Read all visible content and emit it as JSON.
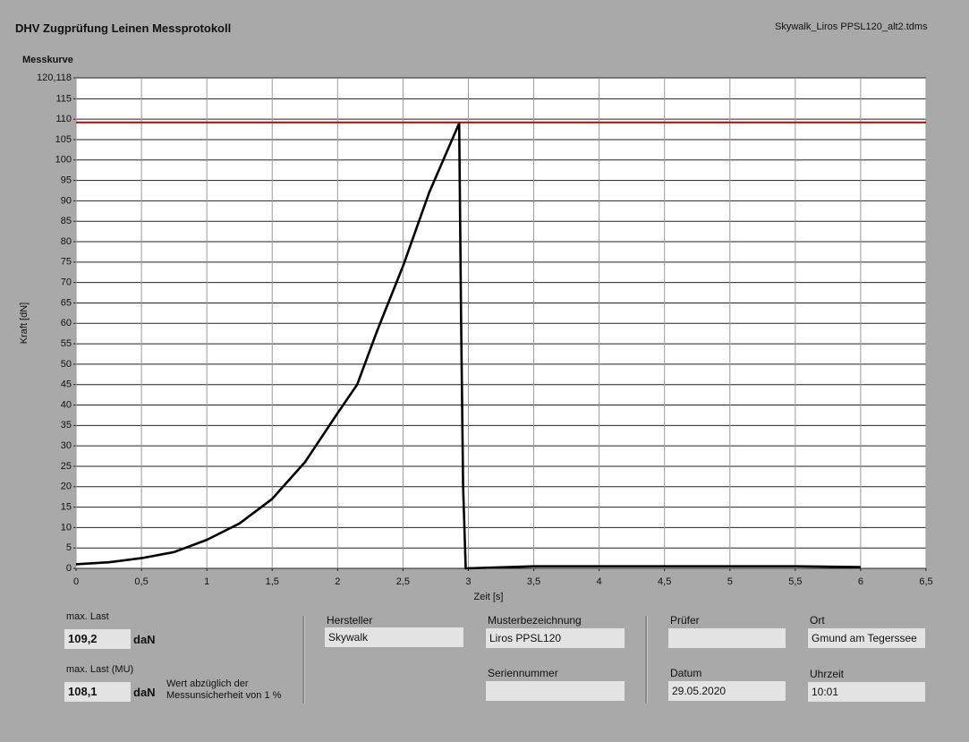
{
  "header": {
    "title": "DHV Zugprüfung Leinen Messprotokoll",
    "file": "Skywalk_Liros PPSL120_alt2.tdms"
  },
  "chart_data": {
    "type": "line",
    "title": "Messkurve",
    "x_label": "Zeit [s]",
    "y_label": "Kraft [dN]",
    "xlim": [
      0,
      6.5
    ],
    "ylim": [
      0,
      120.118
    ],
    "xticks": [
      0,
      {
        "value": 0.5,
        "label": "0,5"
      },
      1,
      {
        "value": 1.5,
        "label": "1,5"
      },
      2,
      {
        "value": 2.5,
        "label": "2,5"
      },
      3,
      {
        "value": 3.5,
        "label": "3,5"
      },
      4,
      {
        "value": 4.5,
        "label": "4,5"
      },
      5,
      {
        "value": 5.5,
        "label": "5,5"
      },
      6,
      {
        "value": 6.5,
        "label": "6,5"
      }
    ],
    "yticks": [
      0,
      5,
      10,
      15,
      20,
      25,
      30,
      35,
      40,
      45,
      50,
      55,
      60,
      65,
      70,
      75,
      80,
      85,
      90,
      95,
      100,
      105,
      110,
      115,
      {
        "value": 120.118,
        "label": "120,118"
      }
    ],
    "grid": true,
    "series": [
      {
        "color": "#000000",
        "x": [
          0,
          0.25,
          0.5,
          0.75,
          1,
          1.25,
          1.5,
          1.75,
          2,
          2.15,
          2.3,
          2.5,
          2.7,
          2.93,
          2.945,
          2.96,
          2.98,
          3.5,
          4,
          4.5,
          5,
          5.5,
          6
        ],
        "values": [
          1,
          1.5,
          2.5,
          4,
          7,
          11,
          17,
          26,
          38,
          45,
          58,
          74,
          92,
          109,
          60,
          20,
          0,
          0.5,
          0.5,
          0.5,
          0.5,
          0.5,
          0.3
        ]
      },
      {
        "color": "#c00000",
        "x": [
          0,
          6.5
        ],
        "values": [
          109.2,
          109.2
        ]
      }
    ]
  },
  "results": [
    {
      "label": "max. Last",
      "value": "109,2",
      "unit": "daN"
    },
    {
      "label": "max. Last (MU)",
      "value": "108,1",
      "unit": "daN",
      "note": [
        "Wert abzüglich der",
        "Messunsicherheit von 1 %"
      ]
    }
  ],
  "fields": [
    {
      "label": "Hersteller",
      "value": "Skywalk"
    },
    {
      "label": "Musterbezeichnung",
      "value": "Liros PPSL120"
    },
    {
      "label": "Seriennummer"
    },
    {
      "label": "Prüfer"
    },
    {
      "label": "Datum",
      "value": "29.05.2020"
    },
    {
      "label": "Ort",
      "value": "Gmund am Tegerssee"
    },
    {
      "label": "Uhrzeit",
      "value": "10:01"
    }
  ]
}
